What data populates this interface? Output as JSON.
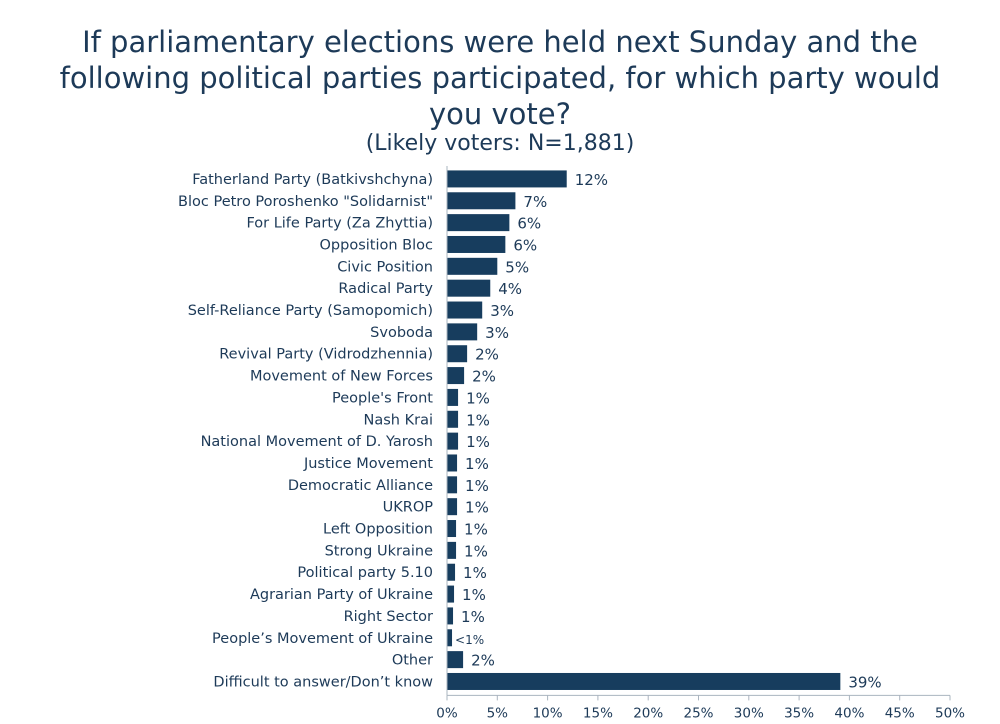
{
  "title": "If parliamentary elections were held next Sunday and the following political parties participated, for which party would you vote?",
  "subtitle": "(Likely voters: N=1,881)",
  "colors": {
    "bar": "#173d5e",
    "text": "#1d3a58",
    "axis": "#aab4bf"
  },
  "chart_data": {
    "type": "bar",
    "orientation": "horizontal",
    "categories": [
      "Fatherland Party (Batkivshchyna)",
      "Bloc Petro Poroshenko \"Solidarnist\"",
      "For Life Party (Za Zhyttia)",
      "Opposition Bloc",
      "Civic Position",
      "Radical Party",
      "Self-Reliance Party (Samopomich)",
      "Svoboda",
      "Revival Party (Vidrodzhennia)",
      "Movement of New Forces",
      "People's Front",
      "Nash Krai",
      "National Movement of D. Yarosh",
      "Justice Movement",
      "Democratic Alliance",
      "UKROP",
      "Left Opposition",
      "Strong Ukraine",
      "Political party 5.10",
      "Agrarian Party of Ukraine",
      "Right Sector",
      "People’s Movement of Ukraine",
      "Other",
      "Difficult to answer/Don’t know"
    ],
    "values": [
      11.9,
      6.8,
      6.2,
      5.8,
      5.0,
      4.3,
      3.5,
      3.0,
      2.0,
      1.7,
      1.1,
      1.1,
      1.1,
      1.0,
      1.0,
      1.0,
      0.9,
      0.9,
      0.8,
      0.7,
      0.6,
      0.5,
      1.6,
      39.1
    ],
    "labels": [
      "12%",
      "7%",
      "6%",
      "6%",
      "5%",
      "4%",
      "3%",
      "3%",
      "2%",
      "2%",
      "1%",
      "1%",
      "1%",
      "1%",
      "1%",
      "1%",
      "1%",
      "1%",
      "1%",
      "1%",
      "1%",
      "<1%",
      "2%",
      "39%"
    ],
    "xlim": [
      0,
      50
    ],
    "xticks": [
      "0%",
      "5%",
      "10%",
      "15%",
      "20%",
      "25%",
      "30%",
      "35%",
      "40%",
      "45%",
      "50%"
    ],
    "xlabel": "",
    "ylabel": "",
    "grid": false,
    "legend": "none"
  }
}
